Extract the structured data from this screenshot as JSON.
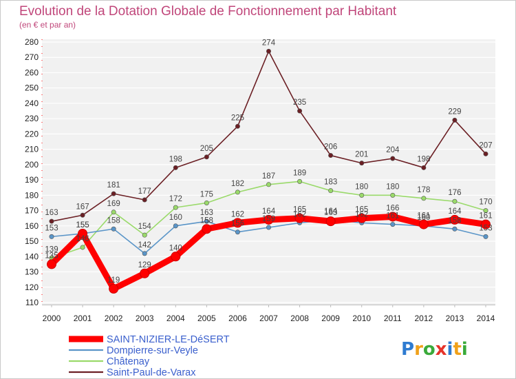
{
  "chart_data": {
    "type": "line",
    "title": "Evolution de la Dotation Globale de Fonctionnement par Habitant",
    "subtitle": "(en € et par an)",
    "xlabel": "",
    "ylabel": "",
    "x": [
      "2000",
      "2001",
      "2002",
      "2003",
      "2004",
      "2005",
      "2006",
      "2007",
      "2008",
      "2009",
      "2010",
      "2011",
      "2012",
      "2013",
      "2014"
    ],
    "ylim": [
      110,
      280
    ],
    "yticks": [
      110,
      120,
      130,
      140,
      150,
      160,
      170,
      180,
      190,
      200,
      210,
      220,
      230,
      240,
      250,
      260,
      270,
      280
    ],
    "grid": "horizontal",
    "legend_position": "bottom-left",
    "series": [
      {
        "name": "Saint-Paul-de-Varax",
        "color": "#6b1f24",
        "values": [
          163,
          167,
          181,
          177,
          198,
          205,
          225,
          274,
          235,
          206,
          201,
          204,
          198,
          229,
          207
        ],
        "labels": [
          "163",
          "167",
          "181",
          "177",
          "198",
          "205",
          "225",
          "274",
          "235",
          "206",
          "201",
          "204",
          "198",
          "229",
          "207"
        ]
      },
      {
        "name": "Châtenay",
        "color": "#9ada6a",
        "values": [
          139,
          146,
          169,
          154,
          172,
          175,
          182,
          187,
          189,
          183,
          180,
          180,
          178,
          176,
          170
        ],
        "labels": [
          "139",
          "146",
          "169",
          "154",
          "172",
          "175",
          "182",
          "187",
          "189",
          "183",
          "180",
          "180",
          "178",
          "176",
          "170"
        ]
      },
      {
        "name": "Dompierre-sur-Veyle",
        "color": "#5a95c8",
        "values": [
          153,
          155,
          158,
          142,
          160,
          163,
          156,
          159,
          162,
          164,
          162,
          161,
          160,
          158,
          153
        ],
        "labels": [
          "153",
          "155",
          "158",
          "142",
          "160",
          "163",
          "156",
          "159",
          "162",
          "164",
          "162",
          "161",
          "160",
          "158",
          "153"
        ]
      },
      {
        "name": "SAINT-NIZIER-LE-DéSERT",
        "color": "#ff0000",
        "values": [
          135,
          155,
          119,
          129,
          140,
          158,
          162,
          164,
          165,
          163,
          165,
          166,
          161,
          164,
          161
        ],
        "labels": [
          "135",
          "155",
          "119",
          "129",
          "140",
          "158",
          "162",
          "164",
          "165",
          "163",
          "165",
          "166",
          "161",
          "164",
          "161"
        ]
      }
    ],
    "legend_order": [
      "SAINT-NIZIER-LE-DéSERT",
      "Dompierre-sur-Veyle",
      "Châtenay",
      "Saint-Paul-de-Varax"
    ]
  },
  "logo": {
    "text": "Proxiti"
  }
}
